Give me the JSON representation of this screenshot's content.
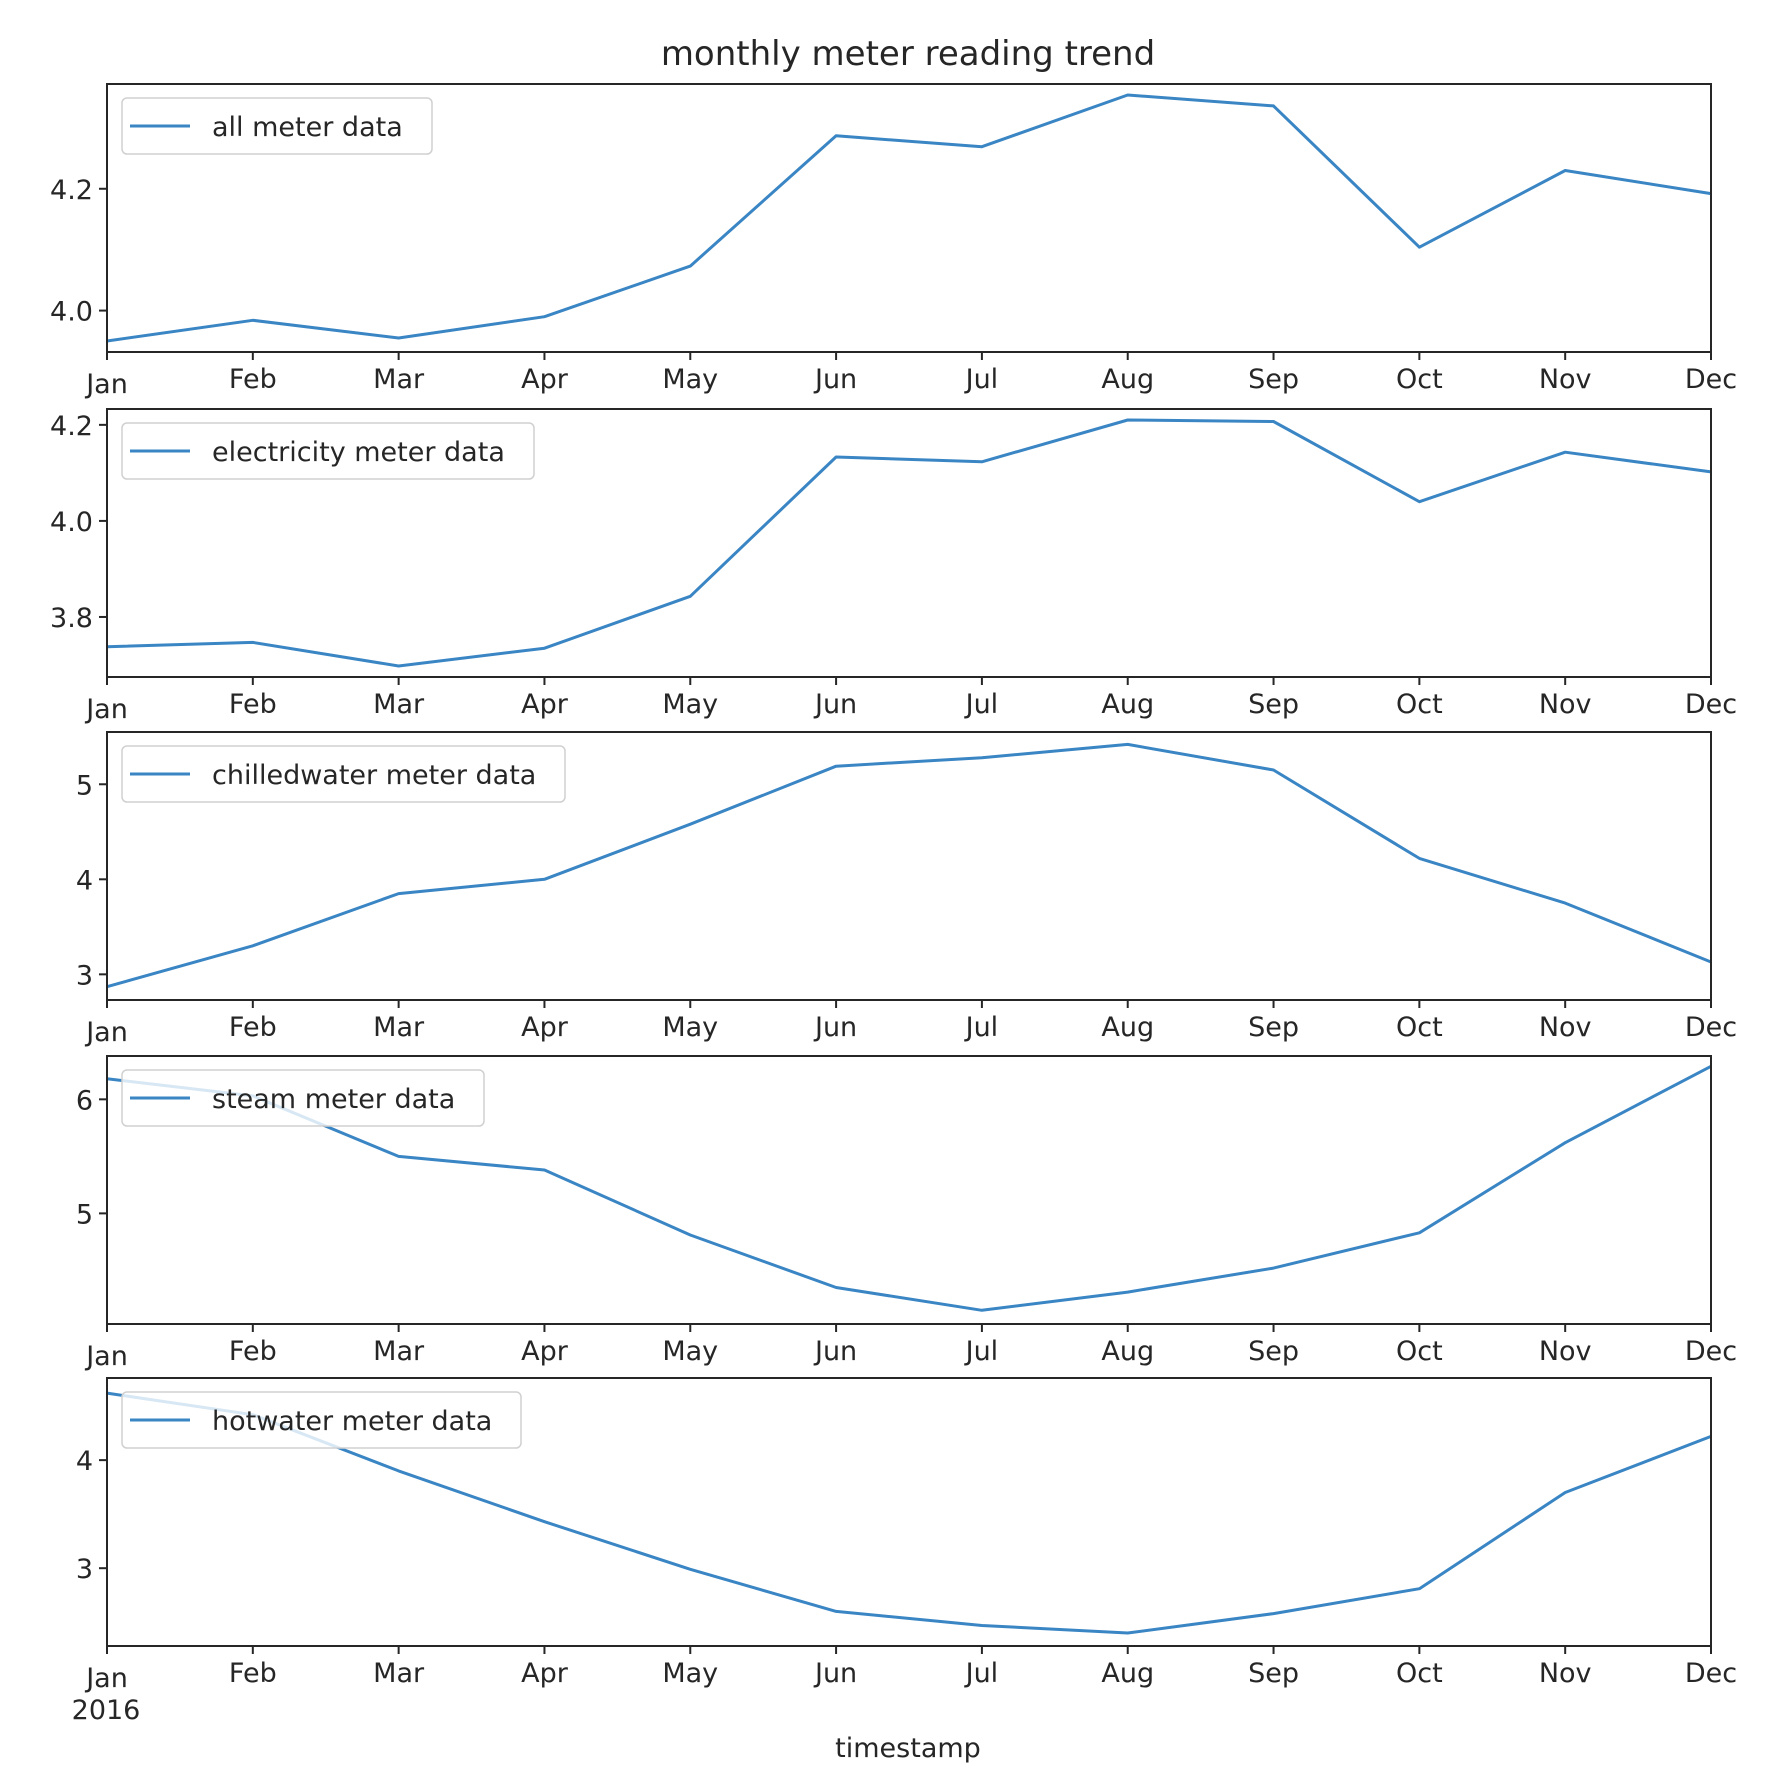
{
  "chart_data": {
    "type": "line",
    "title": "monthly meter reading trend",
    "xlabel": "timestamp",
    "x_year_label": "2016",
    "categories": [
      "Jan",
      "Feb",
      "Mar",
      "Apr",
      "May",
      "Jun",
      "Jul",
      "Aug",
      "Sep",
      "Oct",
      "Nov",
      "Dec"
    ],
    "line_color": "#3a85c4",
    "grid": false,
    "legend_position": "upper-left",
    "subplots": [
      {
        "name": "all meter data",
        "values": [
          3.95,
          3.984,
          3.955,
          3.99,
          4.073,
          4.287,
          4.269,
          4.354,
          4.336,
          4.104,
          4.23,
          4.192
        ],
        "ylim": [
          3.932,
          4.372
        ],
        "yticks": [
          4.0,
          4.2
        ],
        "ytick_labels": [
          "4.0",
          "4.2"
        ]
      },
      {
        "name": "electricity meter data",
        "values": [
          3.738,
          3.747,
          3.698,
          3.735,
          3.843,
          4.133,
          4.123,
          4.21,
          4.207,
          4.04,
          4.143,
          4.102
        ],
        "ylim": [
          3.675,
          4.233
        ],
        "yticks": [
          3.8,
          4.0,
          4.2
        ],
        "ytick_labels": [
          "3.8",
          "4.0",
          "4.2"
        ]
      },
      {
        "name": "chilledwater meter data",
        "values": [
          2.87,
          3.3,
          3.85,
          4.0,
          4.58,
          5.19,
          5.28,
          5.42,
          5.15,
          4.22,
          3.75,
          3.13
        ],
        "ylim": [
          2.73,
          5.55
        ],
        "yticks": [
          3,
          4,
          5
        ],
        "ytick_labels": [
          "3",
          "4",
          "5"
        ]
      },
      {
        "name": "steam meter data",
        "values": [
          6.18,
          6.03,
          5.5,
          5.38,
          4.81,
          4.35,
          4.15,
          4.31,
          4.52,
          4.83,
          5.62,
          6.29
        ],
        "ylim": [
          4.03,
          6.38
        ],
        "yticks": [
          5,
          6
        ],
        "ytick_labels": [
          "5",
          "6"
        ]
      },
      {
        "name": "hotwater meter data",
        "values": [
          4.62,
          4.42,
          3.9,
          3.43,
          2.99,
          2.6,
          2.47,
          2.4,
          2.58,
          2.81,
          3.7,
          4.22
        ],
        "ylim": [
          2.28,
          4.76
        ],
        "yticks": [
          3,
          4
        ],
        "ytick_labels": [
          "3",
          "4"
        ]
      }
    ]
  }
}
